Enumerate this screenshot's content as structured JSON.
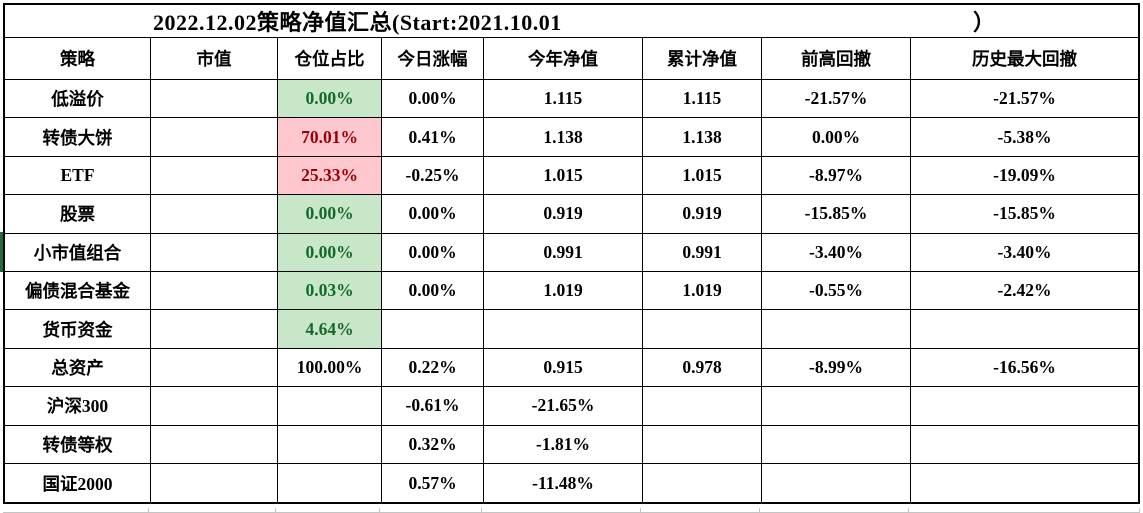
{
  "title": {
    "text": "2022.12.02策略净值汇总(Start:2021.10.01",
    "close_paren": "）"
  },
  "columns": [
    "策略",
    "市值",
    "仓位占比",
    "今日涨幅",
    "今年净值",
    "累计净值",
    "前高回撤",
    "历史最大回撤"
  ],
  "colors": {
    "green_bg": "#c8e7c9",
    "green_text": "#15682c",
    "red_bg": "#ffc7ce",
    "red_text": "#9c0006",
    "row_marker": "#1e6b3c",
    "border": "#000000",
    "faint_grid": "#c4c4c4"
  },
  "rows": [
    {
      "name": "低溢价",
      "mkt": "",
      "position": "0.00%",
      "position_class": "green",
      "marker": false,
      "today": "0.00%",
      "ytd": "1.115",
      "cum": "1.115",
      "dd_prev": "-21.57%",
      "dd_max": "-21.57%"
    },
    {
      "name": "转债大饼",
      "mkt": "",
      "position": "70.01%",
      "position_class": "red",
      "marker": false,
      "today": "0.41%",
      "ytd": "1.138",
      "cum": "1.138",
      "dd_prev": "0.00%",
      "dd_max": "-5.38%"
    },
    {
      "name": "ETF",
      "mkt": "",
      "position": "25.33%",
      "position_class": "red",
      "marker": false,
      "today": "-0.25%",
      "ytd": "1.015",
      "cum": "1.015",
      "dd_prev": "-8.97%",
      "dd_max": "-19.09%"
    },
    {
      "name": "股票",
      "mkt": "",
      "position": "0.00%",
      "position_class": "green",
      "marker": false,
      "today": "0.00%",
      "ytd": "0.919",
      "cum": "0.919",
      "dd_prev": "-15.85%",
      "dd_max": "-15.85%"
    },
    {
      "name": "小市值组合",
      "mkt": "",
      "position": "0.00%",
      "position_class": "green",
      "marker": true,
      "today": "0.00%",
      "ytd": "0.991",
      "cum": "0.991",
      "dd_prev": "-3.40%",
      "dd_max": "-3.40%"
    },
    {
      "name": "偏债混合基金",
      "mkt": "",
      "position": "0.03%",
      "position_class": "green",
      "marker": false,
      "today": "0.00%",
      "ytd": "1.019",
      "cum": "1.019",
      "dd_prev": "-0.55%",
      "dd_max": "-2.42%"
    },
    {
      "name": "货币资金",
      "mkt": "",
      "position": "4.64%",
      "position_class": "green",
      "marker": false,
      "today": "",
      "ytd": "",
      "cum": "",
      "dd_prev": "",
      "dd_max": ""
    },
    {
      "name": "总资产",
      "mkt": "",
      "position": "100.00%",
      "position_class": "plain",
      "marker": false,
      "today": "0.22%",
      "ytd": "0.915",
      "cum": "0.978",
      "dd_prev": "-8.99%",
      "dd_max": "-16.56%"
    },
    {
      "name": "沪深300",
      "mkt": "",
      "position": "",
      "position_class": "plain",
      "marker": false,
      "today": "-0.61%",
      "ytd": "-21.65%",
      "cum": "",
      "dd_prev": "",
      "dd_max": ""
    },
    {
      "name": "转债等权",
      "mkt": "",
      "position": "",
      "position_class": "plain",
      "marker": false,
      "today": "0.32%",
      "ytd": "-1.81%",
      "cum": "",
      "dd_prev": "",
      "dd_max": ""
    },
    {
      "name": "国证2000",
      "mkt": "",
      "position": "",
      "position_class": "plain",
      "marker": false,
      "today": "0.57%",
      "ytd": "-11.48%",
      "cum": "",
      "dd_prev": "",
      "dd_max": ""
    }
  ]
}
